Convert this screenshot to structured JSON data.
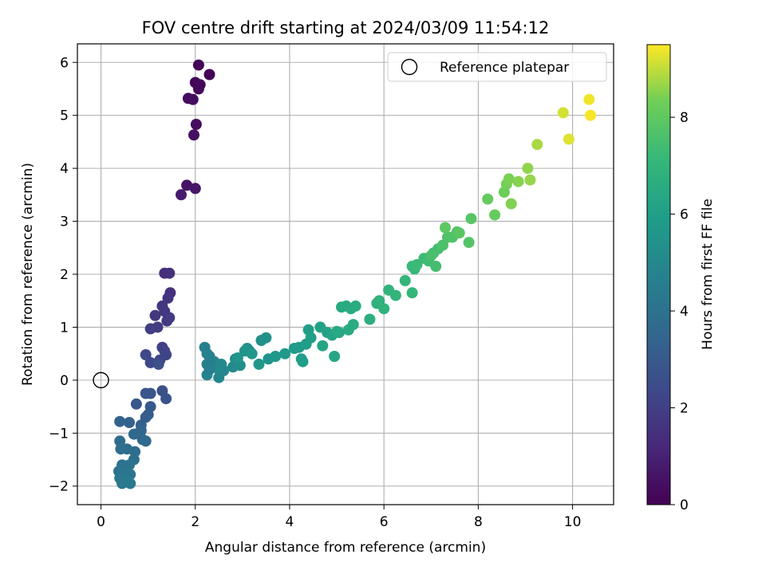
{
  "chart_data": {
    "type": "scatter",
    "title": "FOV centre drift starting at 2024/03/09 11:54:12",
    "xlabel": "Angular distance from reference (arcmin)",
    "ylabel": "Rotation from reference (arcmin)",
    "xlim": [
      -0.5,
      10.87
    ],
    "ylim": [
      -2.35,
      6.35
    ],
    "xticks": [
      0,
      2,
      4,
      6,
      8,
      10
    ],
    "yticks": [
      -2,
      -1,
      0,
      1,
      2,
      3,
      4,
      5,
      6
    ],
    "grid": true,
    "legend": {
      "position": "top-right",
      "entries": [
        "Reference platepar"
      ]
    },
    "colorbar": {
      "label": "Hours from first FF file",
      "range": [
        0,
        9.5
      ],
      "ticks": [
        0,
        2,
        4,
        6,
        8
      ],
      "colormap": "viridis"
    },
    "reference_point": {
      "x": 0,
      "y": 0
    },
    "series": [
      {
        "x": [
          2.07,
          2.3,
          2.0,
          2.07,
          2.1,
          1.85,
          1.95,
          2.02,
          1.97,
          1.82,
          2.0,
          1.7,
          1.35,
          1.45,
          1.47,
          1.42,
          1.3,
          1.15,
          1.35,
          1.4,
          1.45,
          1.2,
          1.05,
          1.3,
          1.35,
          1.38,
          1.25,
          0.95,
          1.05,
          1.22,
          1.3,
          1.38,
          0.95,
          1.05,
          0.75,
          1.05,
          1.0,
          0.95,
          0.85,
          0.6,
          0.4,
          0.85,
          0.88,
          0.7,
          0.8,
          0.95,
          0.72,
          0.4,
          0.55,
          0.42,
          0.7,
          0.45,
          0.6,
          0.38,
          0.5,
          0.62,
          0.4,
          0.55,
          0.45,
          0.62,
          2.2,
          2.25,
          2.3,
          2.4,
          2.35,
          2.25,
          2.5,
          2.6,
          2.55,
          2.48,
          2.25,
          2.3,
          2.8,
          2.85,
          2.95,
          3.1,
          3.15,
          3.4,
          3.5,
          3.55,
          3.05,
          2.9,
          3.2,
          3.35,
          3.7,
          3.9,
          4.1,
          4.2,
          4.25,
          4.35,
          4.4,
          4.28,
          4.45,
          4.65,
          4.8,
          4.9,
          4.7,
          4.95,
          5.05,
          5.1,
          5.2,
          5.3,
          5.4,
          5.35,
          5.0,
          5.25,
          5.7,
          5.85,
          5.9,
          6.0,
          6.1,
          6.25,
          6.45,
          6.6,
          6.65,
          6.6,
          6.7,
          6.85,
          6.95,
          7.05,
          7.1,
          7.15,
          7.0,
          7.25,
          7.35,
          7.45,
          7.55,
          7.8,
          7.85,
          7.6,
          7.3,
          8.2,
          8.35,
          8.55,
          8.6,
          8.65,
          8.7,
          8.85,
          9.05,
          9.1,
          9.25,
          9.8,
          9.92,
          10.35,
          10.38
        ],
        "y": [
          5.95,
          5.77,
          5.62,
          5.5,
          5.58,
          5.32,
          5.3,
          4.83,
          4.63,
          3.68,
          3.62,
          3.5,
          2.02,
          2.02,
          1.65,
          1.55,
          1.4,
          1.22,
          1.3,
          1.12,
          1.18,
          1.0,
          0.97,
          0.62,
          0.55,
          0.48,
          0.38,
          0.48,
          0.33,
          0.3,
          -0.2,
          -0.35,
          -0.25,
          -0.25,
          -0.45,
          -0.5,
          -0.65,
          -0.7,
          -0.85,
          -0.8,
          -0.78,
          -0.95,
          -1.12,
          -1.02,
          -1.0,
          -1.15,
          -1.35,
          -1.15,
          -1.3,
          -1.3,
          -1.5,
          -1.6,
          -1.6,
          -1.72,
          -1.75,
          -1.78,
          -1.85,
          -1.9,
          -1.95,
          -1.95,
          0.62,
          0.5,
          0.45,
          0.35,
          0.25,
          0.1,
          0.05,
          0.18,
          0.3,
          0.22,
          0.3,
          0.2,
          0.25,
          0.4,
          0.28,
          0.6,
          0.55,
          0.75,
          0.8,
          0.4,
          0.55,
          0.42,
          0.5,
          0.3,
          0.45,
          0.5,
          0.6,
          0.62,
          0.4,
          0.68,
          0.95,
          0.35,
          0.8,
          1.0,
          0.9,
          0.85,
          0.65,
          0.45,
          0.9,
          1.38,
          1.4,
          1.35,
          1.4,
          1.05,
          0.92,
          0.95,
          1.15,
          1.45,
          1.5,
          1.35,
          1.7,
          1.6,
          1.88,
          1.65,
          2.1,
          2.15,
          2.18,
          2.3,
          2.25,
          2.4,
          2.15,
          2.48,
          2.35,
          2.55,
          2.7,
          2.7,
          2.8,
          2.6,
          3.05,
          2.78,
          2.88,
          3.42,
          3.12,
          3.55,
          3.7,
          3.8,
          3.33,
          3.75,
          4.0,
          3.78,
          4.45,
          5.05,
          4.55,
          5.3,
          5.0
        ],
        "hours": [
          0.05,
          0.1,
          0.15,
          0.2,
          0.25,
          0.3,
          0.35,
          0.4,
          0.45,
          0.55,
          0.65,
          0.8,
          1.45,
          1.5,
          1.55,
          1.6,
          1.65,
          1.7,
          1.75,
          1.8,
          1.85,
          1.9,
          1.95,
          2.0,
          2.1,
          2.15,
          2.2,
          2.3,
          2.35,
          2.6,
          2.7,
          2.75,
          2.8,
          2.85,
          2.9,
          3.0,
          3.1,
          3.15,
          3.25,
          3.3,
          3.35,
          3.4,
          3.45,
          3.55,
          3.6,
          3.65,
          3.75,
          3.8,
          3.85,
          3.9,
          3.95,
          4.0,
          4.05,
          4.1,
          4.15,
          4.2,
          4.25,
          4.3,
          4.35,
          4.4,
          4.6,
          4.65,
          4.7,
          4.75,
          4.8,
          4.85,
          4.9,
          4.95,
          5.0,
          5.05,
          4.62,
          4.68,
          5.1,
          5.15,
          5.2,
          5.25,
          5.3,
          5.35,
          5.4,
          5.45,
          5.5,
          5.55,
          5.6,
          5.65,
          5.7,
          5.75,
          5.8,
          5.85,
          5.9,
          5.95,
          6.0,
          5.92,
          6.05,
          6.1,
          6.15,
          6.2,
          6.25,
          6.3,
          6.35,
          6.45,
          6.5,
          6.55,
          6.6,
          6.55,
          6.4,
          6.5,
          6.7,
          6.8,
          6.85,
          6.9,
          6.95,
          7.0,
          7.05,
          7.1,
          7.15,
          7.2,
          7.25,
          7.3,
          7.35,
          7.4,
          7.45,
          7.5,
          7.55,
          7.6,
          7.65,
          7.7,
          7.75,
          7.8,
          7.85,
          7.9,
          7.95,
          8.1,
          8.15,
          8.25,
          8.35,
          8.4,
          8.45,
          8.5,
          8.6,
          8.65,
          8.8,
          9.15,
          9.25,
          9.4,
          9.45
        ]
      }
    ]
  }
}
